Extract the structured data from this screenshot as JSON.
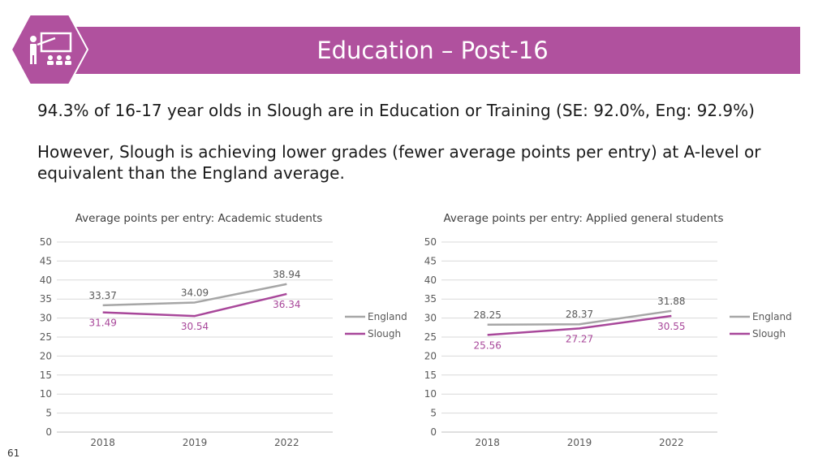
{
  "slide": {
    "title": "Education – Post-16",
    "line1": "94.3% of 16-17 year olds in Slough are in Education or Training (SE: 92.0%, Eng: 92.9%)",
    "line2": "However, Slough is achieving lower grades (fewer average points per entry) at A-level or equivalent than the England average.",
    "page_number": "61",
    "icon": "teacher-presentation-icon"
  },
  "colors": {
    "banner": "#b0519e",
    "england": "#a6a6a6",
    "slough": "#a8479a",
    "grid": "#d9d9d9"
  },
  "chart_data": [
    {
      "type": "line",
      "title": "Average points per entry: Academic students",
      "categories": [
        "2018",
        "2019",
        "2022"
      ],
      "series": [
        {
          "name": "England",
          "values": [
            33.37,
            34.09,
            38.94
          ]
        },
        {
          "name": "Slough",
          "values": [
            31.49,
            30.54,
            36.34
          ]
        }
      ],
      "ylim": [
        0,
        50
      ],
      "yticks": [
        "0",
        "5",
        "10",
        "15",
        "20",
        "25",
        "30",
        "35",
        "40",
        "45",
        "50"
      ],
      "grid": true,
      "legend": "right"
    },
    {
      "type": "line",
      "title": "Average points per entry: Applied general students",
      "categories": [
        "2018",
        "2019",
        "2022"
      ],
      "series": [
        {
          "name": "England",
          "values": [
            28.25,
            28.37,
            31.88
          ]
        },
        {
          "name": "Slough",
          "values": [
            25.56,
            27.27,
            30.55
          ]
        }
      ],
      "ylim": [
        0,
        50
      ],
      "yticks": [
        "0",
        "5",
        "10",
        "15",
        "20",
        "25",
        "30",
        "35",
        "40",
        "45",
        "50"
      ],
      "grid": true,
      "legend": "right"
    }
  ]
}
